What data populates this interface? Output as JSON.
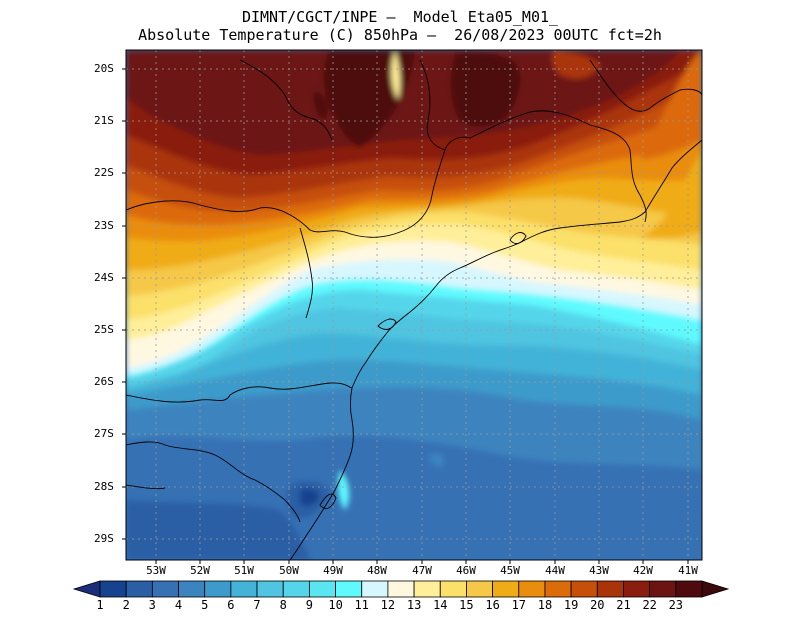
{
  "title": {
    "line1": "DIMNT/CGCT/INPE –  Model Eta05_M01_",
    "line2": "Absolute Temperature (C) 850hPa –  26/08/2023 00UTC fct=2h"
  },
  "lat_labels": [
    "20S",
    "21S",
    "22S",
    "23S",
    "24S",
    "25S",
    "26S",
    "27S",
    "28S",
    "29S"
  ],
  "lon_labels": [
    "53W",
    "52W",
    "51W",
    "50W",
    "49W",
    "48W",
    "47W",
    "46W",
    "45W",
    "44W",
    "43W",
    "42W",
    "41W"
  ],
  "colorbar": {
    "labels": [
      "1",
      "2",
      "3",
      "4",
      "5",
      "6",
      "7",
      "8",
      "9",
      "10",
      "11",
      "12",
      "13",
      "14",
      "15",
      "16",
      "17",
      "18",
      "19",
      "20",
      "21",
      "22",
      "23"
    ],
    "colors": [
      "#16438f",
      "#2b5fa5",
      "#3671b4",
      "#3c84bf",
      "#3d9bcb",
      "#43b3d8",
      "#4fc5e1",
      "#55d5ea",
      "#5ae6f0",
      "#5ffaff",
      "#d7f7ff",
      "#fff8e1",
      "#ffef9a",
      "#fbe06a",
      "#f5c847",
      "#f0ac15",
      "#ea8d0c",
      "#dc6b09",
      "#c65009",
      "#aa3409",
      "#8a1d0e",
      "#6c1412",
      "#4e0a0e"
    ],
    "low_arrow_color": "#1c2e7a",
    "high_arrow_color": "#3d0a0c"
  }
}
